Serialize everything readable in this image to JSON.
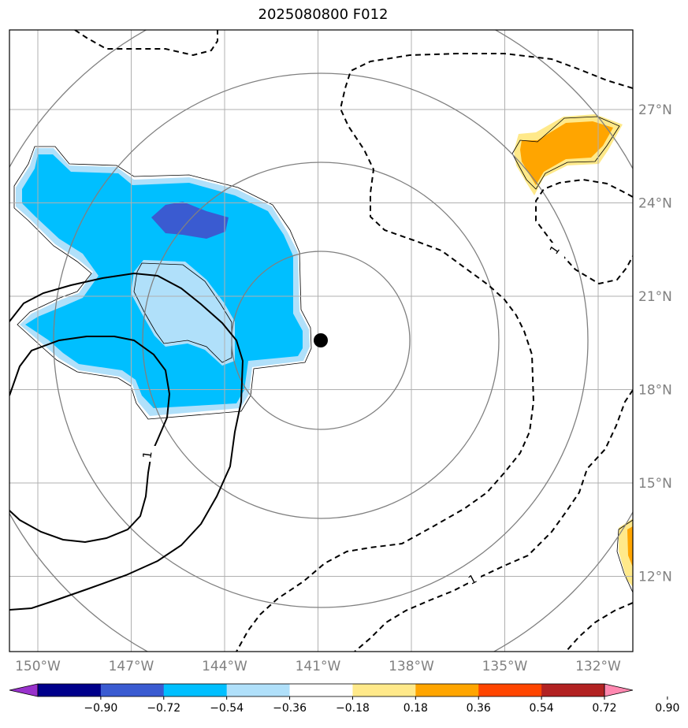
{
  "chart_data": {
    "type": "contour-map",
    "title": "2025080800 F012",
    "center_marker": {
      "lon": -141.0,
      "lat": 19.5
    },
    "x_ticks": [
      "150°W",
      "147°W",
      "144°W",
      "141°W",
      "138°W",
      "135°W",
      "132°W"
    ],
    "y_ticks": [
      "27°N",
      "24°N",
      "21°N",
      "18°N",
      "15°N",
      "12°N"
    ],
    "contour_labels": [
      "1",
      "1",
      "1"
    ],
    "colorbar": {
      "levels": [
        "−0.90",
        "−0.72",
        "−0.54",
        "−0.36",
        "−0.18",
        "0.18",
        "0.36",
        "0.54",
        "0.72",
        "0.90"
      ],
      "colors": [
        "#9932cc",
        "#00008b",
        "#3a5bd1",
        "#00bfff",
        "#b0e0fa",
        "#ffffff",
        "#ffe98a",
        "#ffa500",
        "#ff4500",
        "#b22222",
        "#ff88b0"
      ]
    },
    "gridlines": true
  }
}
